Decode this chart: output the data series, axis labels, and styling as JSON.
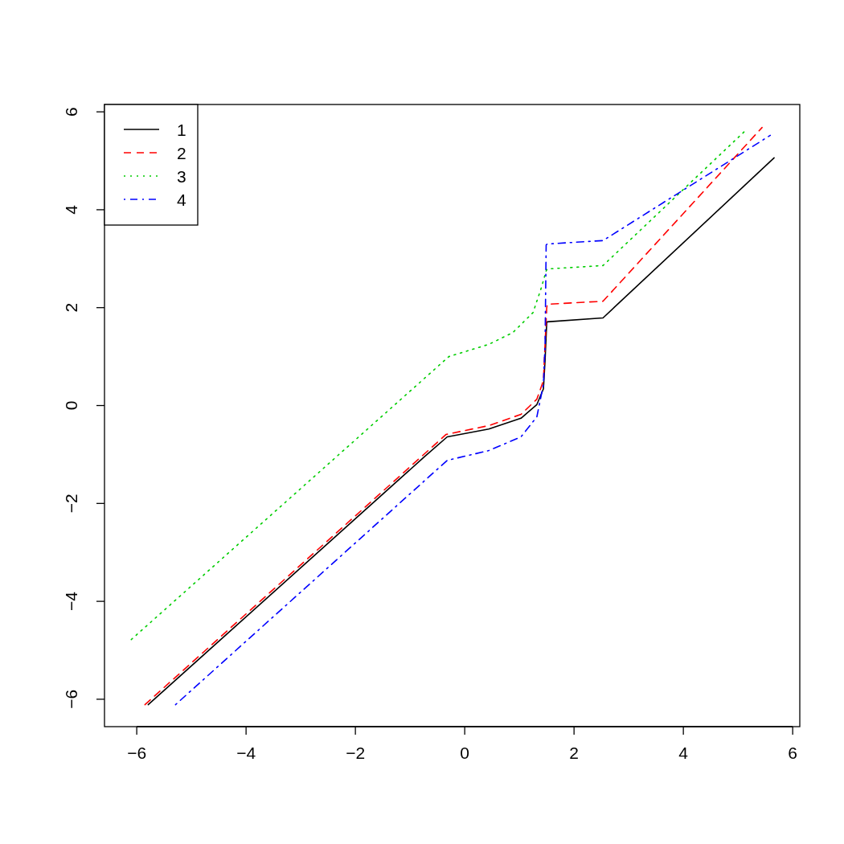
{
  "chart_data": {
    "type": "line",
    "xlim": [
      -6.59,
      6.13
    ],
    "ylim": [
      -6.56,
      6.15
    ],
    "xticks": [
      -6,
      -4,
      -2,
      0,
      2,
      4,
      6
    ],
    "yticks": [
      -6,
      -4,
      -2,
      0,
      2,
      4,
      6
    ],
    "grid": false,
    "legend": "top left",
    "marker": "none",
    "series": [
      {
        "name": "1",
        "color": "#000000",
        "line_style": "solid",
        "x": [
          -5.79,
          -0.74,
          -0.32,
          0.44,
          1.03,
          1.32,
          1.44,
          1.47,
          1.5,
          1.51,
          2.53,
          5.66
        ],
        "values": [
          -6.11,
          -1.05,
          -0.64,
          -0.48,
          -0.26,
          0.02,
          0.34,
          0.92,
          1.69,
          1.71,
          1.79,
          5.06
        ]
      },
      {
        "name": "2",
        "color": "#ff0000",
        "line_style": "dashed",
        "x": [
          -5.85,
          -0.34,
          0.44,
          1.03,
          1.32,
          1.44,
          1.5,
          1.51,
          2.53,
          5.44
        ],
        "values": [
          -6.11,
          -0.59,
          -0.41,
          -0.18,
          0.13,
          0.51,
          1.99,
          2.07,
          2.13,
          5.68
        ]
      },
      {
        "name": "3",
        "color": "#00cd00",
        "line_style": "dotted",
        "x": [
          -6.1,
          -0.29,
          0.44,
          0.88,
          1.25,
          1.4,
          1.49,
          1.51,
          2.53,
          5.12
        ],
        "values": [
          -4.78,
          1.0,
          1.25,
          1.49,
          1.9,
          2.4,
          2.75,
          2.79,
          2.86,
          5.6
        ]
      },
      {
        "name": "4",
        "color": "#0000ff",
        "line_style": "dashdot",
        "x": [
          -5.29,
          -0.32,
          0.44,
          1.03,
          1.32,
          1.44,
          1.47,
          1.49,
          1.51,
          2.53,
          5.59
        ],
        "values": [
          -6.11,
          -1.12,
          -0.92,
          -0.64,
          -0.23,
          0.43,
          1.25,
          3.28,
          3.3,
          3.37,
          5.52
        ]
      }
    ]
  }
}
